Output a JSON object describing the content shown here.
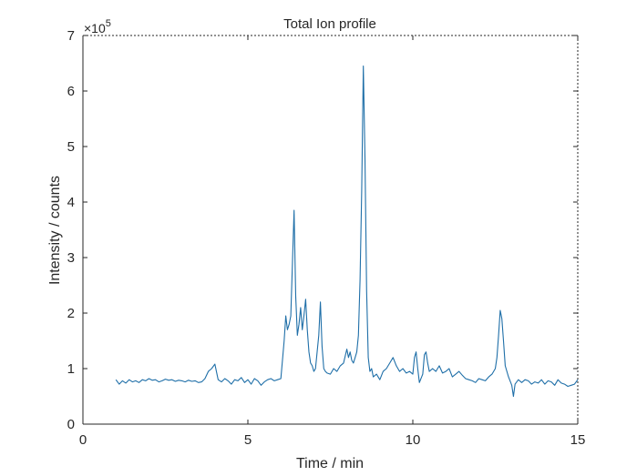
{
  "chart_data": {
    "type": "line",
    "title": "Total Ion profile",
    "xlabel": "Time / min",
    "ylabel": "Intensity / counts",
    "y_exponent_label": "×10",
    "y_exponent_power": "5",
    "xlim": [
      0,
      15
    ],
    "ylim": [
      0,
      7
    ],
    "x_ticks": [
      0,
      5,
      10,
      15
    ],
    "y_ticks": [
      0,
      1,
      2,
      3,
      4,
      5,
      6,
      7
    ],
    "y_tick_labels": [
      "0",
      "1",
      "2",
      "3",
      "4",
      "5",
      "6",
      "7"
    ],
    "x_tick_labels": [
      "0",
      "5",
      "10",
      "15"
    ],
    "grid": false,
    "line_color": "#1f6fa8",
    "series": [
      {
        "x": [
          1.0,
          1.1,
          1.2,
          1.3,
          1.4,
          1.5,
          1.6,
          1.7,
          1.8,
          1.9,
          2.0,
          2.1,
          2.2,
          2.3,
          2.4,
          2.5,
          2.6,
          2.7,
          2.8,
          2.9,
          3.0,
          3.1,
          3.2,
          3.3,
          3.4,
          3.5,
          3.6,
          3.7,
          3.8,
          3.9,
          4.0,
          4.1,
          4.2,
          4.3,
          4.4,
          4.5,
          4.6,
          4.7,
          4.8,
          4.9,
          5.0,
          5.1,
          5.2,
          5.3,
          5.4,
          5.5,
          5.6,
          5.7,
          5.8,
          5.9,
          6.0,
          6.1,
          6.15,
          6.2,
          6.25,
          6.3,
          6.35,
          6.4,
          6.45,
          6.5,
          6.55,
          6.6,
          6.65,
          6.7,
          6.75,
          6.8,
          6.85,
          6.9,
          6.95,
          7.0,
          7.05,
          7.1,
          7.15,
          7.2,
          7.25,
          7.3,
          7.35,
          7.4,
          7.5,
          7.6,
          7.7,
          7.8,
          7.9,
          8.0,
          8.05,
          8.1,
          8.15,
          8.2,
          8.25,
          8.3,
          8.35,
          8.4,
          8.45,
          8.5,
          8.55,
          8.6,
          8.65,
          8.7,
          8.75,
          8.8,
          8.9,
          9.0,
          9.1,
          9.2,
          9.3,
          9.4,
          9.5,
          9.6,
          9.7,
          9.8,
          9.9,
          10.0,
          10.05,
          10.1,
          10.15,
          10.2,
          10.3,
          10.35,
          10.4,
          10.45,
          10.5,
          10.6,
          10.7,
          10.8,
          10.9,
          11.0,
          11.1,
          11.2,
          11.3,
          11.4,
          11.5,
          11.6,
          11.7,
          11.8,
          11.9,
          12.0,
          12.1,
          12.2,
          12.3,
          12.4,
          12.5,
          12.55,
          12.6,
          12.65,
          12.7,
          12.75,
          12.8,
          12.9,
          13.0,
          13.05,
          13.1,
          13.2,
          13.3,
          13.4,
          13.5,
          13.6,
          13.7,
          13.8,
          13.9,
          14.0,
          14.1,
          14.2,
          14.3,
          14.4,
          14.5,
          14.6,
          14.7,
          14.8,
          14.9,
          15.0
        ],
        "y": [
          0.8,
          0.72,
          0.78,
          0.74,
          0.8,
          0.76,
          0.78,
          0.75,
          0.8,
          0.78,
          0.82,
          0.79,
          0.8,
          0.76,
          0.78,
          0.81,
          0.79,
          0.8,
          0.77,
          0.79,
          0.78,
          0.76,
          0.79,
          0.77,
          0.78,
          0.75,
          0.76,
          0.82,
          0.95,
          1.0,
          1.08,
          0.8,
          0.76,
          0.82,
          0.78,
          0.72,
          0.8,
          0.78,
          0.84,
          0.75,
          0.8,
          0.72,
          0.82,
          0.78,
          0.7,
          0.76,
          0.8,
          0.82,
          0.78,
          0.8,
          0.82,
          1.5,
          1.95,
          1.7,
          1.8,
          1.95,
          2.9,
          3.85,
          2.3,
          1.6,
          1.8,
          2.1,
          1.7,
          1.95,
          2.25,
          1.7,
          1.3,
          1.1,
          1.05,
          0.95,
          1.0,
          1.3,
          1.6,
          2.2,
          1.4,
          1.0,
          0.95,
          0.92,
          0.9,
          1.0,
          0.95,
          1.05,
          1.1,
          1.35,
          1.2,
          1.3,
          1.15,
          1.1,
          1.2,
          1.3,
          1.6,
          2.6,
          4.2,
          6.45,
          4.8,
          2.4,
          1.2,
          0.95,
          1.0,
          0.85,
          0.9,
          0.8,
          0.95,
          1.0,
          1.1,
          1.2,
          1.05,
          0.95,
          1.0,
          0.92,
          0.95,
          0.9,
          1.2,
          1.3,
          1.0,
          0.75,
          0.9,
          1.25,
          1.3,
          1.1,
          0.95,
          1.0,
          0.95,
          1.05,
          0.92,
          0.95,
          1.0,
          0.85,
          0.9,
          0.95,
          0.88,
          0.82,
          0.8,
          0.78,
          0.75,
          0.82,
          0.8,
          0.78,
          0.85,
          0.9,
          1.0,
          1.2,
          1.6,
          2.05,
          1.9,
          1.5,
          1.05,
          0.85,
          0.7,
          0.5,
          0.72,
          0.8,
          0.75,
          0.8,
          0.78,
          0.72,
          0.76,
          0.74,
          0.8,
          0.72,
          0.78,
          0.76,
          0.7,
          0.8,
          0.74,
          0.72,
          0.68,
          0.7,
          0.72,
          0.8
        ]
      }
    ]
  }
}
